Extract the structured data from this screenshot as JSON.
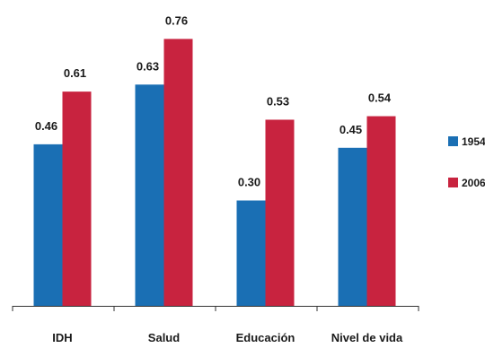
{
  "chart_data": {
    "type": "bar",
    "categories": [
      "IDH",
      "Salud",
      "Educación",
      "Nivel de vida"
    ],
    "series": [
      {
        "name": "1954",
        "color": "#1a6fb4",
        "values": [
          0.46,
          0.63,
          0.3,
          0.45
        ],
        "labels": [
          "0.46",
          "0.63",
          "0.30",
          "0.45"
        ]
      },
      {
        "name": "2006",
        "color": "#c8233f",
        "values": [
          0.61,
          0.76,
          0.53,
          0.54
        ],
        "labels": [
          "0.61",
          "0.76",
          "0.53",
          "0.54"
        ]
      }
    ],
    "ylim": [
      0,
      0.83
    ],
    "grid": false,
    "legend_position": "right"
  }
}
